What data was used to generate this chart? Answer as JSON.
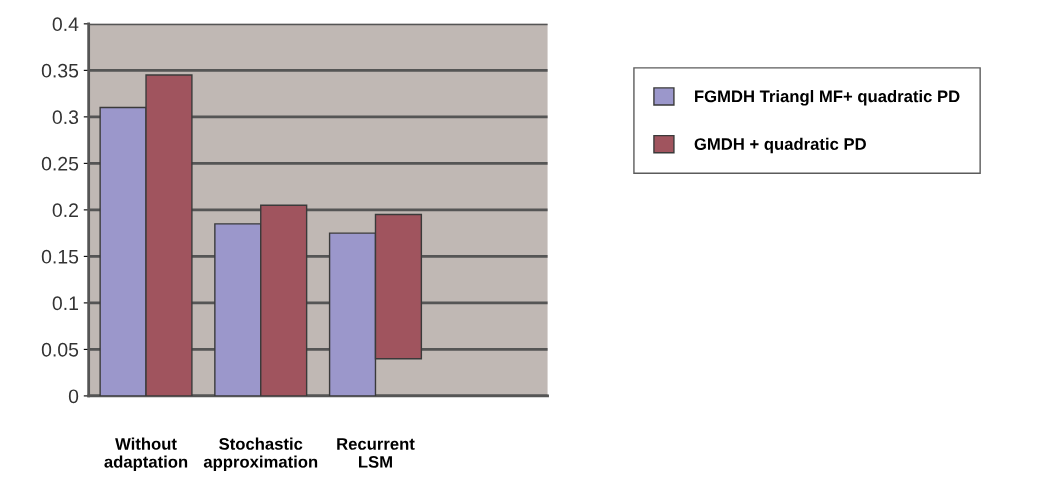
{
  "chart_data": {
    "type": "bar",
    "categories": [
      "Without\nadaptation",
      "Stochastic\napproximation",
      "Recurrent\nLSM",
      null
    ],
    "series": [
      {
        "name": "FGMDH Triangl MF+ quadratic PD",
        "color": "#9b97cb",
        "values": [
          0.31,
          0.185,
          0.175,
          null
        ]
      },
      {
        "name": "GMDH + quadratic PD",
        "color": "#a0545e",
        "values": [
          0.345,
          0.205,
          0.155,
          null
        ],
        "base": [
          0,
          0,
          0.04,
          null
        ]
      }
    ],
    "ylim": [
      0,
      0.4
    ],
    "yticks": [
      0,
      0.05,
      0.1,
      0.15,
      0.2,
      0.25,
      0.3,
      0.35,
      0.4
    ],
    "grid": "y",
    "legend": "right"
  }
}
